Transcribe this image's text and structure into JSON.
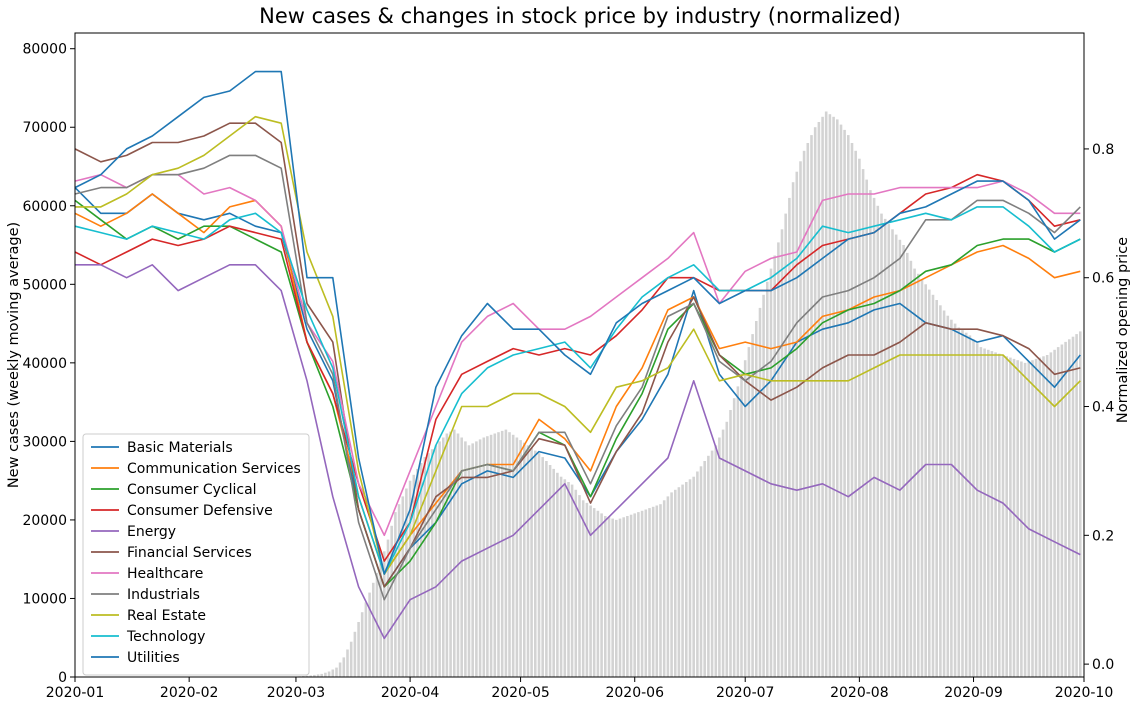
{
  "chart_data": {
    "type": "bar+line",
    "title": "New cases & changes in stock price by industry (normalized)",
    "xlabel": "",
    "ylabel_left": "New cases (weekly moving average)",
    "ylabel_right": "Normalized opening price",
    "xlim": [
      "2020-01-01",
      "2020-10-01"
    ],
    "ylim_left": [
      0,
      82000
    ],
    "ylim_right": [
      -0.02,
      0.98
    ],
    "x_ticks": [
      "2020-01",
      "2020-02",
      "2020-03",
      "2020-04",
      "2020-05",
      "2020-06",
      "2020-07",
      "2020-08",
      "2020-09",
      "2020-10"
    ],
    "y_left_ticks": [
      0,
      10000,
      20000,
      30000,
      40000,
      50000,
      60000,
      70000,
      80000
    ],
    "y_right_ticks": [
      0.0,
      0.2,
      0.4,
      0.6,
      0.8
    ],
    "y_right_tick_labels": [
      "0.0",
      "0.2",
      "0.4",
      "0.6",
      "0.8"
    ],
    "legend_location": "lower-left",
    "bar_color": "#d3d3d3",
    "bars": {
      "name": "new cases",
      "axis": "left",
      "dates": [
        "2020-02-25",
        "2020-03-01",
        "2020-03-05",
        "2020-03-08",
        "2020-03-10",
        "2020-03-12",
        "2020-03-14",
        "2020-03-16",
        "2020-03-18",
        "2020-03-20",
        "2020-03-22",
        "2020-03-24",
        "2020-03-26",
        "2020-03-28",
        "2020-03-30",
        "2020-04-01",
        "2020-04-03",
        "2020-04-05",
        "2020-04-07",
        "2020-04-09",
        "2020-04-11",
        "2020-04-13",
        "2020-04-15",
        "2020-04-17",
        "2020-04-19",
        "2020-04-21",
        "2020-04-24",
        "2020-04-27",
        "2020-04-30",
        "2020-05-03",
        "2020-05-06",
        "2020-05-09",
        "2020-05-12",
        "2020-05-15",
        "2020-05-18",
        "2020-05-21",
        "2020-05-24",
        "2020-05-27",
        "2020-05-30",
        "2020-06-02",
        "2020-06-05",
        "2020-06-08",
        "2020-06-11",
        "2020-06-14",
        "2020-06-17",
        "2020-06-20",
        "2020-06-23",
        "2020-06-26",
        "2020-06-29",
        "2020-07-02",
        "2020-07-05",
        "2020-07-08",
        "2020-07-11",
        "2020-07-14",
        "2020-07-17",
        "2020-07-20",
        "2020-07-23",
        "2020-07-26",
        "2020-07-29",
        "2020-08-01",
        "2020-08-04",
        "2020-08-07",
        "2020-08-10",
        "2020-08-13",
        "2020-08-16",
        "2020-08-19",
        "2020-08-22",
        "2020-08-25",
        "2020-08-28",
        "2020-08-31",
        "2020-09-03",
        "2020-09-06",
        "2020-09-09",
        "2020-09-12",
        "2020-09-15",
        "2020-09-18",
        "2020-09-21",
        "2020-09-24",
        "2020-09-27",
        "2020-09-30"
      ],
      "values": [
        20,
        60,
        200,
        400,
        700,
        1200,
        2500,
        4500,
        7000,
        9500,
        12000,
        14500,
        17500,
        21000,
        23000,
        25000,
        26500,
        28000,
        29000,
        30000,
        31000,
        31500,
        30500,
        29500,
        30000,
        30500,
        31000,
        31500,
        30500,
        29500,
        28500,
        27000,
        25500,
        24500,
        22500,
        21500,
        20500,
        20000,
        20500,
        21000,
        21500,
        22000,
        23500,
        24500,
        25500,
        27500,
        29500,
        32500,
        37000,
        42000,
        47000,
        52000,
        57000,
        63000,
        67000,
        70000,
        72000,
        71000,
        69000,
        66000,
        62000,
        59000,
        57000,
        55000,
        52000,
        50000,
        48000,
        46000,
        44500,
        43500,
        42000,
        41500,
        41000,
        40500,
        40000,
        40500,
        41000,
        42000,
        43000,
        44000
      ]
    },
    "dates": [
      "2020-01-01",
      "2020-01-08",
      "2020-01-15",
      "2020-01-22",
      "2020-01-29",
      "2020-02-05",
      "2020-02-12",
      "2020-02-19",
      "2020-02-26",
      "2020-03-04",
      "2020-03-11",
      "2020-03-18",
      "2020-03-25",
      "2020-04-01",
      "2020-04-08",
      "2020-04-15",
      "2020-04-22",
      "2020-04-29",
      "2020-05-06",
      "2020-05-13",
      "2020-05-20",
      "2020-05-27",
      "2020-06-03",
      "2020-06-10",
      "2020-06-17",
      "2020-06-24",
      "2020-07-01",
      "2020-07-08",
      "2020-07-15",
      "2020-07-22",
      "2020-07-29",
      "2020-08-05",
      "2020-08-12",
      "2020-08-19",
      "2020-08-26",
      "2020-09-02",
      "2020-09-09",
      "2020-09-16",
      "2020-09-23",
      "2020-09-30"
    ],
    "series": [
      {
        "name": "Basic Materials",
        "color": "#1f77b4",
        "values": [
          0.74,
          0.7,
          0.7,
          0.73,
          0.7,
          0.69,
          0.7,
          0.68,
          0.67,
          0.52,
          0.44,
          0.24,
          0.12,
          0.18,
          0.22,
          0.28,
          0.3,
          0.29,
          0.33,
          0.32,
          0.26,
          0.33,
          0.38,
          0.45,
          0.58,
          0.45,
          0.4,
          0.44,
          0.5,
          0.52,
          0.53,
          0.55,
          0.56,
          0.53,
          0.52,
          0.5,
          0.51,
          0.47,
          0.43,
          0.48
        ]
      },
      {
        "name": "Communication Services",
        "color": "#ff7f0e",
        "values": [
          0.7,
          0.68,
          0.7,
          0.73,
          0.7,
          0.67,
          0.71,
          0.72,
          0.68,
          0.5,
          0.42,
          0.26,
          0.14,
          0.2,
          0.25,
          0.3,
          0.31,
          0.31,
          0.38,
          0.35,
          0.3,
          0.4,
          0.46,
          0.55,
          0.57,
          0.49,
          0.5,
          0.49,
          0.5,
          0.54,
          0.55,
          0.57,
          0.58,
          0.6,
          0.62,
          0.64,
          0.65,
          0.63,
          0.6,
          0.61
        ]
      },
      {
        "name": "Consumer Cyclical",
        "color": "#2ca02c",
        "values": [
          0.72,
          0.69,
          0.66,
          0.68,
          0.66,
          0.68,
          0.68,
          0.66,
          0.64,
          0.5,
          0.4,
          0.24,
          0.12,
          0.16,
          0.22,
          0.3,
          0.31,
          0.3,
          0.36,
          0.34,
          0.26,
          0.35,
          0.42,
          0.52,
          0.56,
          0.48,
          0.45,
          0.46,
          0.49,
          0.53,
          0.55,
          0.56,
          0.58,
          0.61,
          0.62,
          0.65,
          0.66,
          0.66,
          0.64,
          0.66
        ]
      },
      {
        "name": "Consumer Defensive",
        "color": "#d62728",
        "values": [
          0.64,
          0.62,
          0.64,
          0.66,
          0.65,
          0.66,
          0.68,
          0.67,
          0.66,
          0.5,
          0.42,
          0.28,
          0.16,
          0.22,
          0.38,
          0.45,
          0.47,
          0.49,
          0.48,
          0.49,
          0.48,
          0.51,
          0.55,
          0.6,
          0.6,
          0.58,
          0.58,
          0.58,
          0.62,
          0.65,
          0.66,
          0.67,
          0.7,
          0.73,
          0.74,
          0.76,
          0.75,
          0.72,
          0.68,
          0.69
        ]
      },
      {
        "name": "Energy",
        "color": "#9467bd",
        "values": [
          0.62,
          0.62,
          0.6,
          0.62,
          0.58,
          0.6,
          0.62,
          0.62,
          0.58,
          0.44,
          0.26,
          0.12,
          0.04,
          0.1,
          0.12,
          0.16,
          0.18,
          0.2,
          0.24,
          0.28,
          0.2,
          0.24,
          0.28,
          0.32,
          0.44,
          0.32,
          0.3,
          0.28,
          0.27,
          0.28,
          0.26,
          0.29,
          0.27,
          0.31,
          0.31,
          0.27,
          0.25,
          0.21,
          0.19,
          0.17
        ]
      },
      {
        "name": "Financial Services",
        "color": "#8c564b",
        "values": [
          0.8,
          0.78,
          0.79,
          0.81,
          0.81,
          0.82,
          0.84,
          0.84,
          0.81,
          0.56,
          0.5,
          0.24,
          0.12,
          0.18,
          0.26,
          0.29,
          0.29,
          0.3,
          0.35,
          0.34,
          0.25,
          0.33,
          0.39,
          0.5,
          0.57,
          0.48,
          0.44,
          0.41,
          0.43,
          0.46,
          0.48,
          0.48,
          0.5,
          0.53,
          0.52,
          0.52,
          0.51,
          0.49,
          0.45,
          0.46
        ]
      },
      {
        "name": "Healthcare",
        "color": "#e377c2",
        "values": [
          0.75,
          0.76,
          0.74,
          0.76,
          0.76,
          0.73,
          0.74,
          0.72,
          0.68,
          0.53,
          0.47,
          0.28,
          0.2,
          0.3,
          0.4,
          0.5,
          0.54,
          0.56,
          0.52,
          0.52,
          0.54,
          0.57,
          0.6,
          0.63,
          0.67,
          0.56,
          0.61,
          0.63,
          0.64,
          0.72,
          0.73,
          0.73,
          0.74,
          0.74,
          0.74,
          0.74,
          0.75,
          0.73,
          0.7,
          0.7
        ]
      },
      {
        "name": "Industrials",
        "color": "#7f7f7f",
        "values": [
          0.73,
          0.74,
          0.74,
          0.76,
          0.76,
          0.77,
          0.79,
          0.79,
          0.77,
          0.53,
          0.45,
          0.22,
          0.1,
          0.18,
          0.24,
          0.3,
          0.31,
          0.3,
          0.36,
          0.36,
          0.28,
          0.37,
          0.43,
          0.54,
          0.56,
          0.47,
          0.44,
          0.47,
          0.53,
          0.57,
          0.58,
          0.6,
          0.63,
          0.69,
          0.69,
          0.72,
          0.72,
          0.7,
          0.67,
          0.71
        ]
      },
      {
        "name": "Real Estate",
        "color": "#bcbd22",
        "values": [
          0.71,
          0.71,
          0.73,
          0.76,
          0.77,
          0.79,
          0.82,
          0.85,
          0.84,
          0.64,
          0.54,
          0.3,
          0.14,
          0.2,
          0.3,
          0.4,
          0.4,
          0.42,
          0.42,
          0.4,
          0.36,
          0.43,
          0.44,
          0.46,
          0.52,
          0.44,
          0.45,
          0.44,
          0.44,
          0.44,
          0.44,
          0.46,
          0.48,
          0.48,
          0.48,
          0.48,
          0.48,
          0.44,
          0.4,
          0.44
        ]
      },
      {
        "name": "Technology",
        "color": "#17becf",
        "values": [
          0.68,
          0.67,
          0.66,
          0.68,
          0.67,
          0.66,
          0.69,
          0.7,
          0.67,
          0.55,
          0.46,
          0.26,
          0.14,
          0.22,
          0.34,
          0.42,
          0.46,
          0.48,
          0.49,
          0.5,
          0.46,
          0.52,
          0.57,
          0.6,
          0.62,
          0.58,
          0.58,
          0.6,
          0.63,
          0.68,
          0.67,
          0.68,
          0.69,
          0.7,
          0.69,
          0.71,
          0.71,
          0.68,
          0.64,
          0.66
        ]
      },
      {
        "name": "Utilities",
        "color": "#1f77b4",
        "values": [
          0.74,
          0.76,
          0.8,
          0.82,
          0.85,
          0.88,
          0.89,
          0.92,
          0.92,
          0.6,
          0.6,
          0.32,
          0.14,
          0.24,
          0.43,
          0.51,
          0.56,
          0.52,
          0.52,
          0.48,
          0.45,
          0.53,
          0.56,
          0.58,
          0.6,
          0.56,
          0.58,
          0.58,
          0.6,
          0.63,
          0.66,
          0.67,
          0.7,
          0.71,
          0.73,
          0.75,
          0.75,
          0.72,
          0.66,
          0.69
        ]
      }
    ]
  }
}
